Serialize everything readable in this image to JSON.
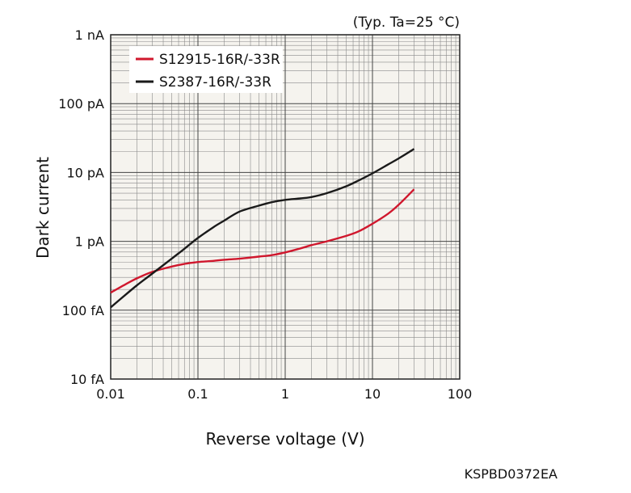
{
  "chart_data": {
    "type": "line",
    "title": "",
    "annotation": "(Typ. Ta=25 °C)",
    "xlabel": "Reverse voltage (V)",
    "ylabel": "Dark current",
    "xscale": "log",
    "yscale": "log",
    "xlim": [
      0.01,
      100
    ],
    "ylim": [
      1e-14,
      1e-09
    ],
    "grid": true,
    "legend_position": "top-left",
    "x_tick_labels": [
      "0.01",
      "0.1",
      "1",
      "10",
      "100"
    ],
    "y_tick_labels": [
      "10 fA",
      "100 fA",
      "1 pA",
      "10 pA",
      "100 pA",
      "1 nA"
    ],
    "series": [
      {
        "name": "S12915-16R/-33R",
        "color": "#d0172d",
        "x": [
          0.01,
          0.015,
          0.02,
          0.03,
          0.05,
          0.07,
          0.1,
          0.15,
          0.2,
          0.3,
          0.5,
          0.7,
          1,
          1.5,
          2,
          3,
          5,
          7,
          10,
          15,
          20,
          30
        ],
        "y": [
          1.8e-13,
          2.4e-13,
          2.9e-13,
          3.6e-13,
          4.3e-13,
          4.7e-13,
          5e-13,
          5.2e-13,
          5.4e-13,
          5.6e-13,
          6e-13,
          6.3e-13,
          6.9e-13,
          7.9e-13,
          8.8e-13,
          1e-12,
          1.2e-12,
          1.4e-12,
          1.8e-12,
          2.5e-12,
          3.4e-12,
          5.7e-12
        ]
      },
      {
        "name": "S2387-16R/-33R",
        "color": "#1a1a1a",
        "x": [
          0.01,
          0.015,
          0.02,
          0.03,
          0.05,
          0.07,
          0.1,
          0.15,
          0.2,
          0.3,
          0.5,
          0.7,
          1,
          1.5,
          2,
          3,
          5,
          7,
          10,
          15,
          20,
          30
        ],
        "y": [
          1.1e-13,
          1.7e-13,
          2.3e-13,
          3.4e-13,
          5.6e-13,
          7.8e-13,
          1.12e-12,
          1.6e-12,
          2e-12,
          2.7e-12,
          3.3e-12,
          3.7e-12,
          4e-12,
          4.2e-12,
          4.4e-12,
          5e-12,
          6.3e-12,
          7.7e-12,
          9.7e-12,
          1.3e-11,
          1.6e-11,
          2.2e-11
        ]
      }
    ]
  },
  "footer_code": "KSPBD0372EA"
}
